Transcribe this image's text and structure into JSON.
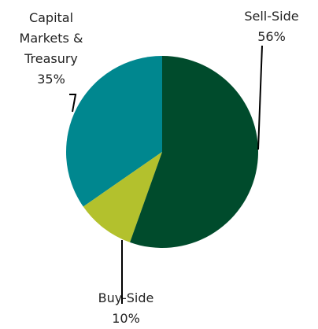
{
  "chart_data": {
    "type": "pie",
    "categories": [
      "Sell-Side",
      "Buy-Side",
      "Capital Markets & Treasury"
    ],
    "values": [
      56,
      10,
      35
    ],
    "value_labels": [
      "56%",
      "10%",
      "35%"
    ],
    "colors": [
      "#004b2c",
      "#b3c12d",
      "#00878f"
    ]
  }
}
